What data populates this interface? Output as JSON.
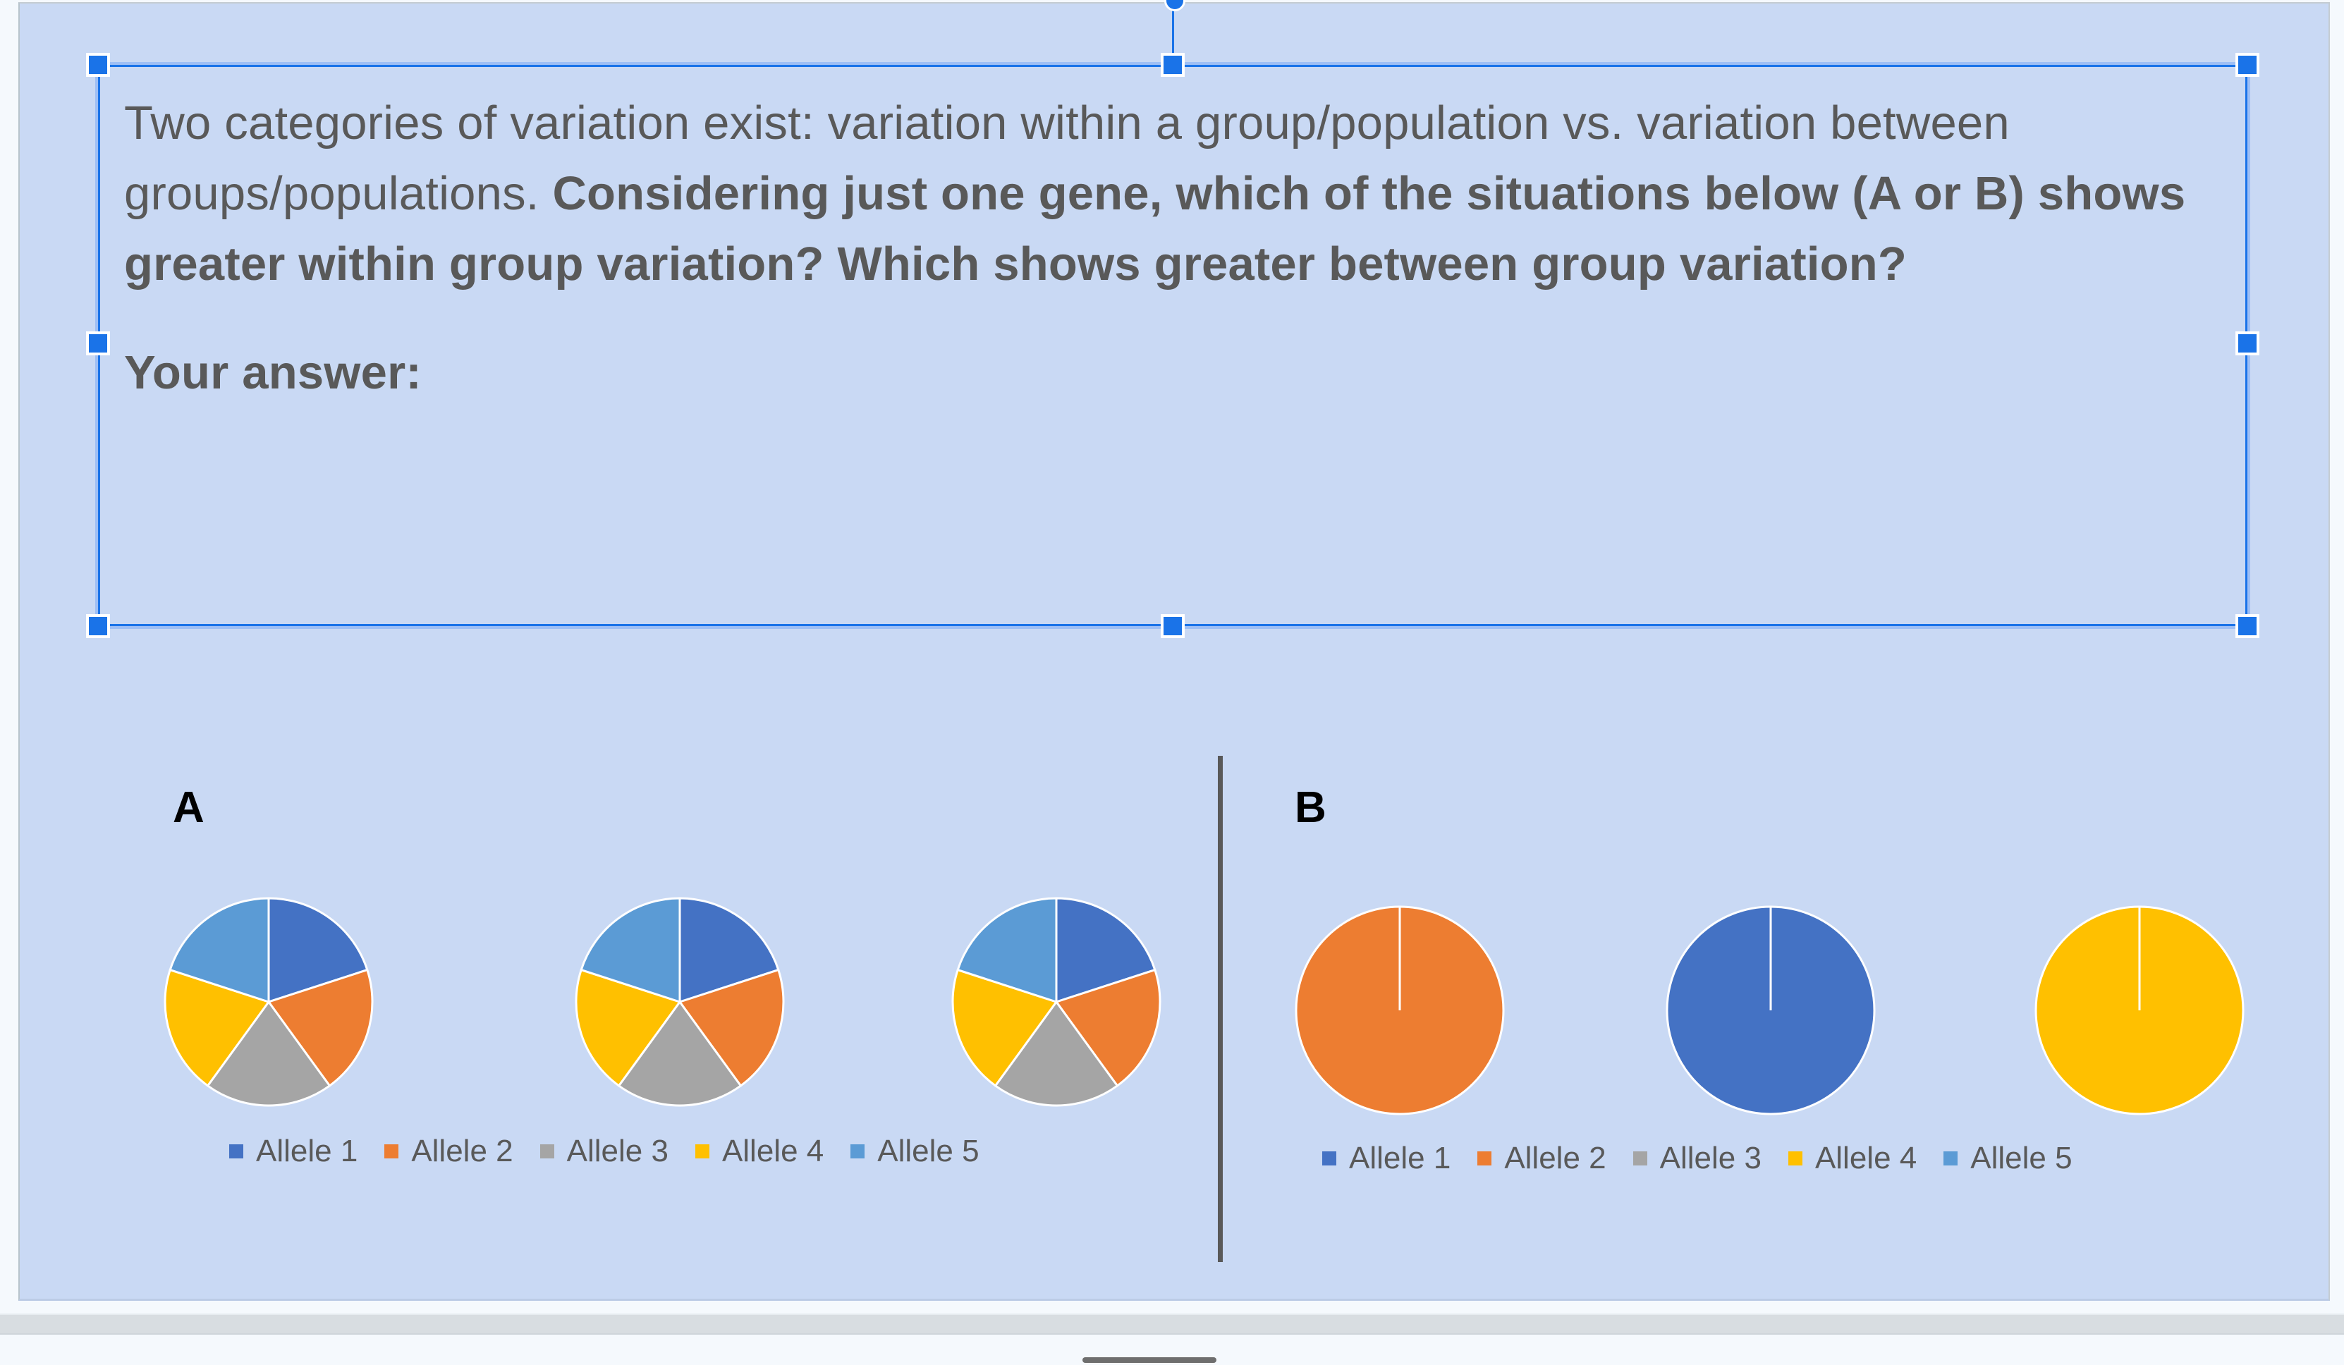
{
  "question": {
    "intro": "Two categories of variation exist: variation within a group/population vs. variation between groups/populations.",
    "bold_question": "Considering just one gene, which of the situations below (A or B) shows greater within group variation? Which shows greater between group variation?",
    "answer_label": "Your answer:",
    "answer_value": ""
  },
  "panels": {
    "a_label": "A",
    "b_label": "B"
  },
  "colors": {
    "allele_1": "#4472c4",
    "allele_2": "#ed7d31",
    "allele_3": "#a5a5a5",
    "allele_4": "#ffc000",
    "allele_5": "#5b9bd5",
    "slide_bg": "#c9d9f4",
    "selection": "#1a73e8",
    "text": "#595959"
  },
  "legend": [
    {
      "label": "Allele 1",
      "color": "#4472c4"
    },
    {
      "label": "Allele 2",
      "color": "#ed7d31"
    },
    {
      "label": "Allele 3",
      "color": "#a5a5a5"
    },
    {
      "label": "Allele 4",
      "color": "#ffc000"
    },
    {
      "label": "Allele 5",
      "color": "#5b9bd5"
    }
  ],
  "chart_data": [
    {
      "type": "pie",
      "title": "A - population 1",
      "categories": [
        "Allele 1",
        "Allele 2",
        "Allele 3",
        "Allele 4",
        "Allele 5"
      ],
      "values": [
        20,
        20,
        20,
        20,
        20
      ]
    },
    {
      "type": "pie",
      "title": "A - population 2",
      "categories": [
        "Allele 1",
        "Allele 2",
        "Allele 3",
        "Allele 4",
        "Allele 5"
      ],
      "values": [
        20,
        20,
        20,
        20,
        20
      ]
    },
    {
      "type": "pie",
      "title": "A - population 3",
      "categories": [
        "Allele 1",
        "Allele 2",
        "Allele 3",
        "Allele 4",
        "Allele 5"
      ],
      "values": [
        20,
        20,
        20,
        20,
        20
      ]
    },
    {
      "type": "pie",
      "title": "B - population 1",
      "categories": [
        "Allele 1",
        "Allele 2",
        "Allele 3",
        "Allele 4",
        "Allele 5"
      ],
      "values": [
        0,
        100,
        0,
        0,
        0
      ]
    },
    {
      "type": "pie",
      "title": "B - population 2",
      "categories": [
        "Allele 1",
        "Allele 2",
        "Allele 3",
        "Allele 4",
        "Allele 5"
      ],
      "values": [
        100,
        0,
        0,
        0,
        0
      ]
    },
    {
      "type": "pie",
      "title": "B - population 3",
      "categories": [
        "Allele 1",
        "Allele 2",
        "Allele 3",
        "Allele 4",
        "Allele 5"
      ],
      "values": [
        0,
        0,
        0,
        100,
        0
      ]
    }
  ]
}
